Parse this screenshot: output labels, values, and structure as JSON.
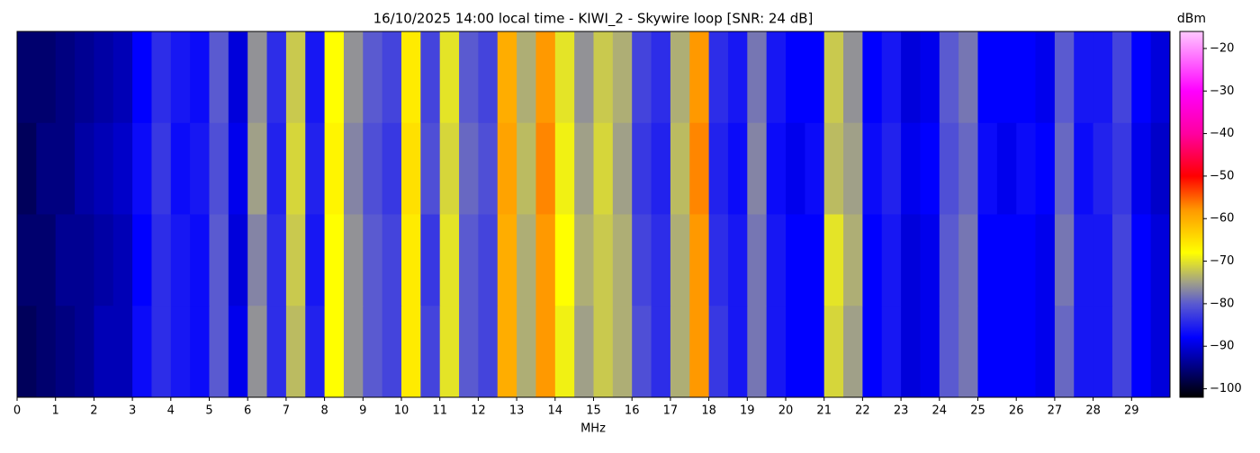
{
  "chart_data": {
    "type": "heatmap",
    "title": "16/10/2025 14:00 local time - KIWI_2 - Skywire loop [SNR: 24 dB]",
    "x_label": "MHz",
    "colorbar_label": "dBm",
    "xlim": [
      0,
      30
    ],
    "xticks": [
      0,
      1,
      2,
      3,
      4,
      5,
      6,
      7,
      8,
      9,
      10,
      11,
      12,
      13,
      14,
      15,
      16,
      17,
      18,
      19,
      20,
      21,
      22,
      23,
      24,
      25,
      26,
      27,
      28,
      29
    ],
    "zlim": [
      -102,
      -16
    ],
    "zticks": [
      {
        "value": -20,
        "label": "−20"
      },
      {
        "value": -30,
        "label": "−30"
      },
      {
        "value": -40,
        "label": "−40"
      },
      {
        "value": -50,
        "label": "−50"
      },
      {
        "value": -60,
        "label": "−60"
      },
      {
        "value": -70,
        "label": "−70"
      },
      {
        "value": -80,
        "label": "−80"
      },
      {
        "value": -90,
        "label": "−90"
      },
      {
        "value": -100,
        "label": "−100"
      }
    ],
    "colorscale": [
      [
        -102,
        "#000000"
      ],
      [
        -95,
        "#000080"
      ],
      [
        -88,
        "#0000ff"
      ],
      [
        -80,
        "#5a5ad0"
      ],
      [
        -75,
        "#a0a088"
      ],
      [
        -68,
        "#ffff00"
      ],
      [
        -58,
        "#ff9900"
      ],
      [
        -50,
        "#ff0000"
      ],
      [
        -40,
        "#ff00a0"
      ],
      [
        -30,
        "#ff00ff"
      ],
      [
        -16,
        "#ffc8ff"
      ]
    ],
    "z": [
      [
        -96,
        -96,
        -95,
        -94,
        -93,
        -92,
        -88,
        -84,
        -86,
        -87,
        -80,
        -90,
        -76,
        -84,
        -72,
        -86,
        -68,
        -76,
        -80,
        -82,
        -66,
        -82,
        -70,
        -80,
        -82,
        -60,
        -74,
        -58,
        -70,
        -76,
        -72,
        -74,
        -82,
        -84,
        -74,
        -58,
        -84,
        -86,
        -78,
        -86,
        -88,
        -88,
        -72,
        -76,
        -88,
        -86,
        -90,
        -89,
        -80,
        -78,
        -88,
        -88,
        -88,
        -89,
        -80,
        -86,
        -86,
        -82,
        -88,
        -90
      ],
      [
        -97,
        -95,
        -95,
        -93,
        -92,
        -91,
        -87,
        -83,
        -87,
        -86,
        -81,
        -89,
        -75,
        -85,
        -71,
        -85,
        -67,
        -77,
        -81,
        -83,
        -65,
        -81,
        -71,
        -79,
        -81,
        -59,
        -73,
        -57,
        -69,
        -75,
        -71,
        -75,
        -83,
        -85,
        -73,
        -57,
        -85,
        -87,
        -77,
        -87,
        -89,
        -87,
        -73,
        -75,
        -87,
        -85,
        -89,
        -88,
        -81,
        -79,
        -87,
        -89,
        -87,
        -88,
        -79,
        -87,
        -85,
        -83,
        -89,
        -91
      ],
      [
        -96,
        -96,
        -94,
        -94,
        -93,
        -92,
        -88,
        -84,
        -86,
        -87,
        -80,
        -90,
        -77,
        -84,
        -72,
        -86,
        -68,
        -76,
        -80,
        -82,
        -66,
        -83,
        -70,
        -80,
        -82,
        -60,
        -74,
        -58,
        -68,
        -74,
        -72,
        -74,
        -82,
        -84,
        -74,
        -58,
        -84,
        -86,
        -78,
        -86,
        -88,
        -88,
        -70,
        -74,
        -88,
        -86,
        -90,
        -89,
        -80,
        -78,
        -88,
        -88,
        -88,
        -89,
        -78,
        -86,
        -86,
        -82,
        -88,
        -90
      ],
      [
        -97,
        -96,
        -95,
        -94,
        -92,
        -92,
        -87,
        -84,
        -86,
        -87,
        -80,
        -89,
        -76,
        -84,
        -73,
        -85,
        -68,
        -76,
        -80,
        -82,
        -66,
        -82,
        -70,
        -80,
        -82,
        -60,
        -74,
        -58,
        -69,
        -75,
        -72,
        -74,
        -81,
        -84,
        -74,
        -58,
        -83,
        -86,
        -78,
        -86,
        -88,
        -88,
        -71,
        -75,
        -88,
        -86,
        -90,
        -89,
        -80,
        -78,
        -88,
        -88,
        -88,
        -89,
        -79,
        -86,
        -86,
        -82,
        -88,
        -90
      ]
    ]
  }
}
